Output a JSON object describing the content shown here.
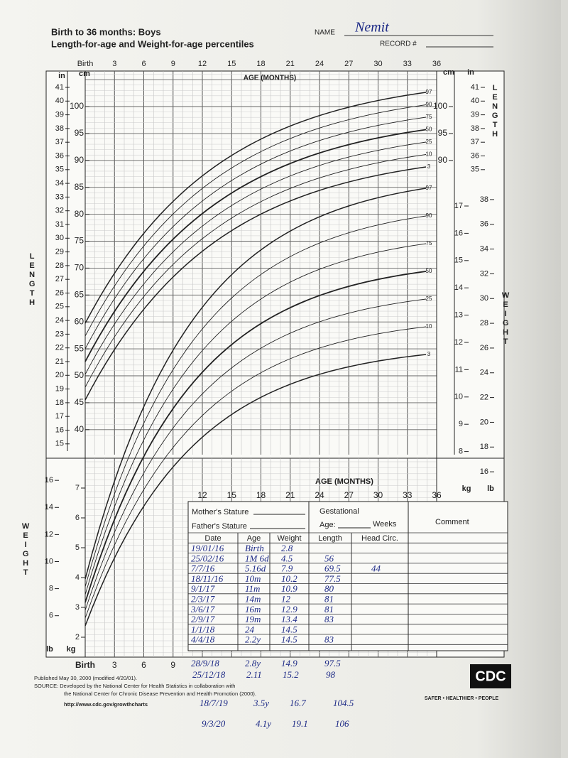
{
  "header": {
    "title": "Birth to 36 months: Boys",
    "subtitle": "Length-for-age and Weight-for-age percentiles",
    "name_label": "NAME",
    "name_value": "Nemit",
    "record_label": "RECORD #"
  },
  "chart": {
    "age_label_top": "AGE (MONTHS)",
    "age_label_bottom": "AGE (MONTHS)",
    "months_top": [
      "Birth",
      "3",
      "6",
      "9",
      "12",
      "15",
      "18",
      "21",
      "24",
      "27",
      "30",
      "33",
      "36"
    ],
    "months_bottom": [
      "12",
      "15",
      "18",
      "21",
      "24",
      "27",
      "30",
      "33",
      "36"
    ],
    "months_birth": [
      "Birth",
      "3",
      "6",
      "9"
    ],
    "length_label": "LENGTH",
    "weight_label": "WEIGHT",
    "unit_in": "in",
    "unit_cm": "cm",
    "unit_kg": "kg",
    "unit_lb": "lb",
    "length_cm_left": [
      "40",
      "45",
      "50",
      "55",
      "60",
      "65",
      "70",
      "75",
      "80",
      "85",
      "90",
      "95",
      "100"
    ],
    "length_in_left": [
      "15",
      "16",
      "17",
      "18",
      "19",
      "20",
      "21",
      "22",
      "23",
      "24",
      "25",
      "26",
      "27",
      "28",
      "29",
      "30",
      "31",
      "32",
      "33",
      "34",
      "35",
      "36",
      "37",
      "38",
      "39",
      "40",
      "41"
    ],
    "length_cm_right": [
      "90",
      "95",
      "100"
    ],
    "length_in_right": [
      "35",
      "36",
      "37",
      "38",
      "39",
      "40",
      "41"
    ],
    "weight_kg_right": [
      "8",
      "9",
      "10",
      "11",
      "12",
      "13",
      "14",
      "15",
      "16",
      "17"
    ],
    "weight_lb_right": [
      "16",
      "18",
      "20",
      "22",
      "24",
      "26",
      "28",
      "30",
      "32",
      "34",
      "36",
      "38"
    ],
    "weight_kg_left": [
      "2",
      "3",
      "4",
      "5",
      "6",
      "7"
    ],
    "weight_lb_left": [
      "6",
      "8",
      "10",
      "12",
      "14",
      "16"
    ],
    "length_percentiles": [
      "97",
      "90",
      "75",
      "50",
      "25",
      "10",
      "3"
    ],
    "weight_percentiles": [
      "97",
      "90",
      "75",
      "50",
      "25",
      "10",
      "3"
    ]
  },
  "table": {
    "mother_stature": "Mother's Stature",
    "father_stature": "Father's Stature",
    "gestational": "Gestational",
    "age": "Age:",
    "weeks": "Weeks",
    "comment": "Comment",
    "columns": [
      "Date",
      "Age",
      "Weight",
      "Length",
      "Head Circ."
    ],
    "rows": [
      [
        "19/01/16",
        "Birth",
        "2.8",
        "",
        ""
      ],
      [
        "25/02/16",
        "1M 6d",
        "4.5",
        "56",
        ""
      ],
      [
        "7/7/16",
        "5.16d",
        "7.9",
        "69.5",
        "44"
      ],
      [
        "18/11/16",
        "10m",
        "10.2",
        "77.5",
        ""
      ],
      [
        "9/1/17",
        "11m",
        "10.9",
        "80",
        ""
      ],
      [
        "2/3/17",
        "14m",
        "12",
        "81",
        ""
      ],
      [
        "3/6/17",
        "16m",
        "12.9",
        "81",
        ""
      ],
      [
        "2/9/17",
        "19m",
        "13.4",
        "83",
        ""
      ],
      [
        "1/1/18",
        "24",
        "14.5",
        "",
        ""
      ],
      [
        "4/4/18",
        "2.2y",
        "14.5",
        "83",
        ""
      ],
      [
        "28/9/18",
        "2.8y",
        "14.9",
        "97.5",
        ""
      ],
      [
        "25/12/18",
        "2.11",
        "15.2",
        "98",
        ""
      ],
      [
        "18/7/19",
        "3.5y",
        "16.7",
        "104.5",
        ""
      ],
      [
        "9/3/20",
        "4.1y",
        "19.1",
        "106",
        ""
      ]
    ]
  },
  "footer": {
    "published": "Published May 30, 2000 (modified 4/20/01).",
    "source": "SOURCE: Developed by the National Center for Health Statistics in collaboration with",
    "source2": "the National Center for Chronic Disease Prevention and Health Promotion (2000).",
    "url": "http://www.cdc.gov/growthcharts",
    "logo": "CDC",
    "tagline": "SAFER • HEALTHIER • PEOPLE"
  }
}
